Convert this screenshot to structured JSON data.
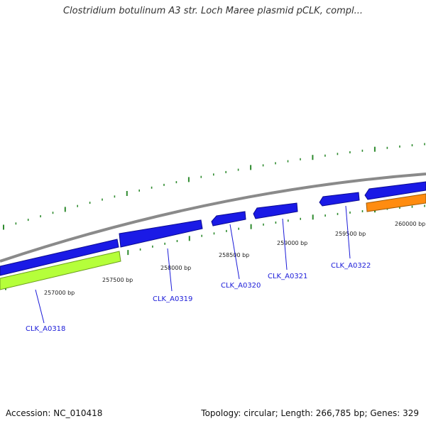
{
  "title": "Clostridium botulinum A3 str. Loch Maree plasmid pCLK, compl...",
  "footer": {
    "accession": "Accession: NC_010418",
    "summary": "Topology: circular; Length: 266,785 bp; Genes: 329"
  },
  "colors": {
    "backbone": "#8a8a8a",
    "gene_forward": "#1a1ae6",
    "gene_reverse_green": "#b5ff3a",
    "gene_orange": "#ff8c10",
    "tick": "#2e8b2e",
    "gene_label": "#1a1ad8"
  },
  "ticks": [
    {
      "label": "257000 bp"
    },
    {
      "label": "257500 bp"
    },
    {
      "label": "258000 bp"
    },
    {
      "label": "258500 bp"
    },
    {
      "label": "259000 bp"
    },
    {
      "label": "259500 bp"
    },
    {
      "label": "260000 bp"
    }
  ],
  "genes": [
    {
      "name": "CLK_A0318"
    },
    {
      "name": "CLK_A0319"
    },
    {
      "name": "CLK_A0320"
    },
    {
      "name": "CLK_A0321"
    },
    {
      "name": "CLK_A0322"
    }
  ]
}
